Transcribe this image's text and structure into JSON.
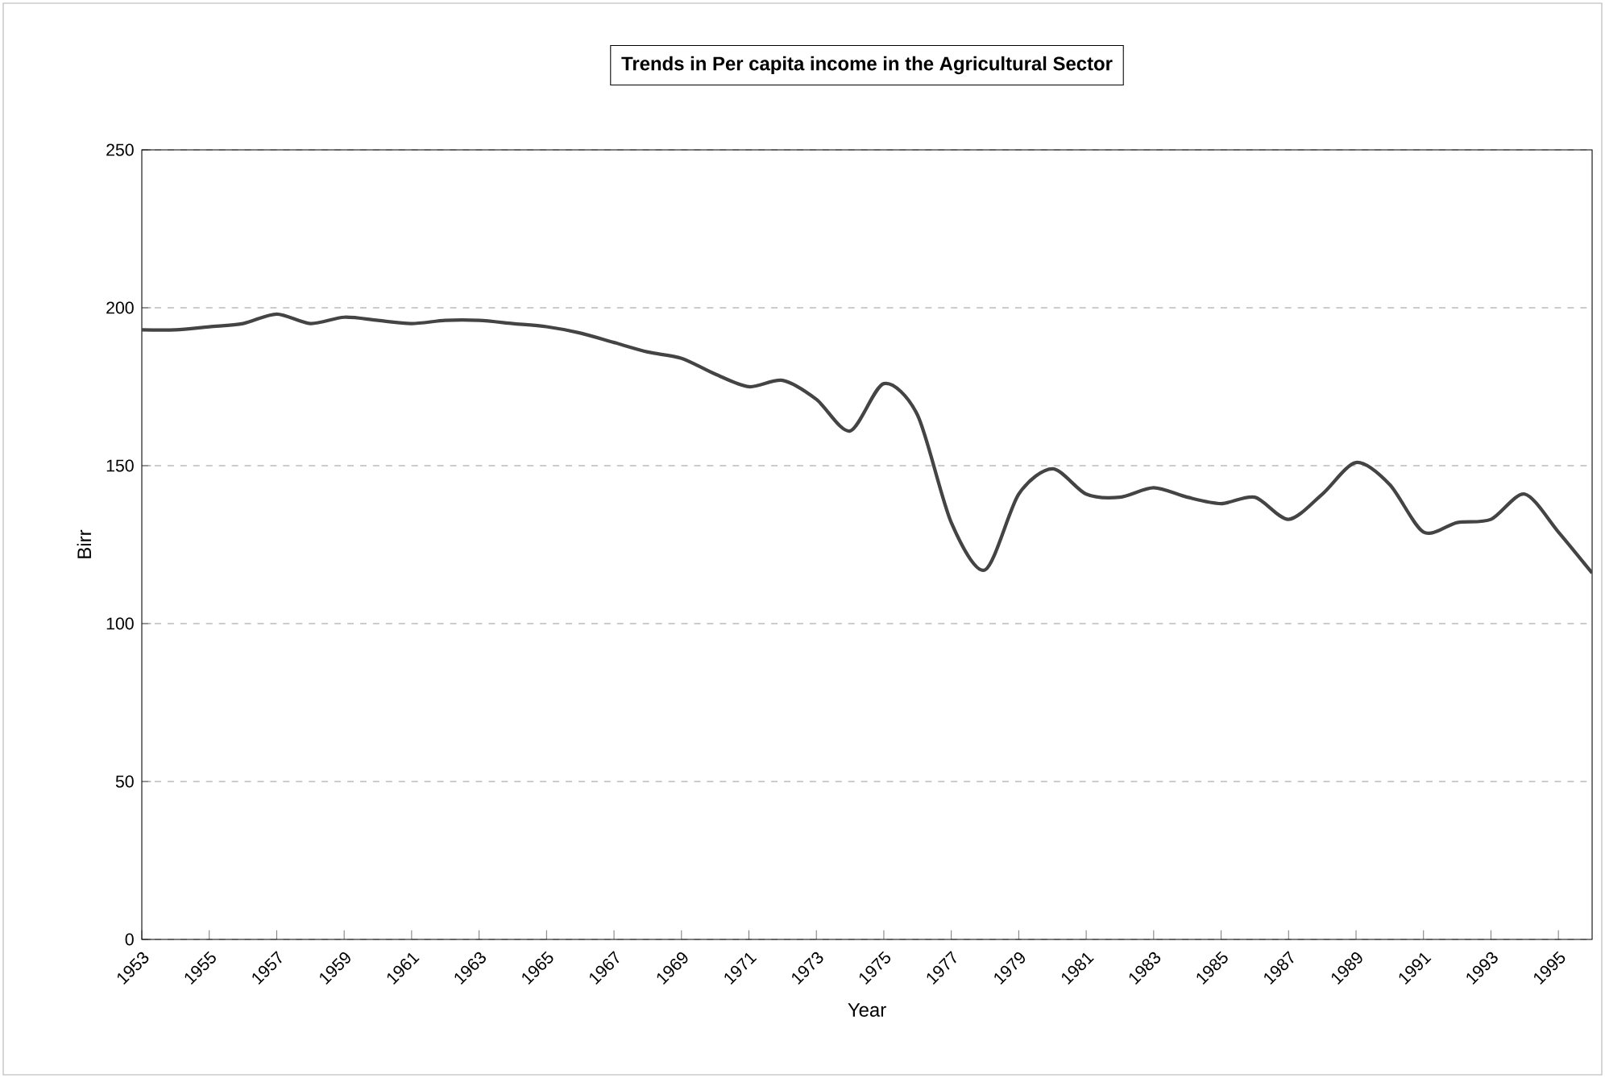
{
  "chart_data": {
    "type": "line",
    "title": "Trends in Per capita income in the Agricultural Sector",
    "xlabel": "Year",
    "ylabel": "Birr",
    "x": [
      1953,
      1954,
      1955,
      1956,
      1957,
      1958,
      1959,
      1960,
      1961,
      1962,
      1963,
      1964,
      1965,
      1966,
      1967,
      1968,
      1969,
      1970,
      1971,
      1972,
      1973,
      1974,
      1975,
      1976,
      1977,
      1978,
      1979,
      1980,
      1981,
      1982,
      1983,
      1984,
      1985,
      1986,
      1987,
      1988,
      1989,
      1990,
      1991,
      1992,
      1993,
      1994,
      1995,
      1996
    ],
    "series": [
      {
        "color": "#444444",
        "values": [
          193,
          193,
          194,
          195,
          198,
          195,
          197,
          196,
          195,
          196,
          196,
          195,
          194,
          192,
          189,
          186,
          184,
          179,
          175,
          177,
          171,
          161,
          176,
          166,
          132,
          117,
          141,
          149,
          141,
          140,
          143,
          140,
          138,
          140,
          133,
          141,
          151,
          144,
          129,
          132,
          133,
          141,
          129,
          116
        ]
      }
    ],
    "xlim": [
      1953,
      1996
    ],
    "ylim": [
      0,
      250
    ],
    "xticks": [
      1953,
      1955,
      1957,
      1959,
      1961,
      1963,
      1965,
      1967,
      1969,
      1971,
      1973,
      1975,
      1977,
      1979,
      1981,
      1983,
      1985,
      1987,
      1989,
      1991,
      1993,
      1995
    ],
    "yticks": [
      0,
      50,
      100,
      150,
      200,
      250
    ],
    "grid": "y",
    "line_style": "solid",
    "marker": "none"
  }
}
